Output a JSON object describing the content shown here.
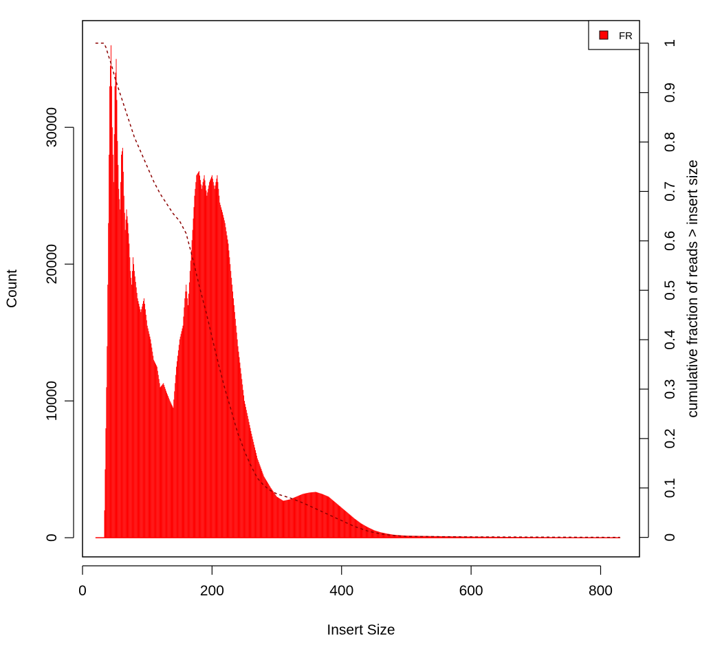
{
  "chart_data": {
    "type": "bar",
    "title": "",
    "xlabel": "Insert Size",
    "ylabel": "Count",
    "y2label": "cumulative fraction of reads > insert size",
    "xlim": [
      0,
      860
    ],
    "ylim": [
      -1400,
      37800
    ],
    "y2lim": [
      -0.03944,
      1.04561
    ],
    "x_ticks": [
      0,
      200,
      400,
      600,
      800
    ],
    "y_ticks": [
      0,
      10000,
      20000,
      30000
    ],
    "y2_ticks": [
      0,
      0.1,
      0.2,
      0.3,
      0.4,
      0.5,
      0.6,
      0.7,
      0.8,
      0.9,
      1
    ],
    "y2_tick_labels": [
      "0",
      "0.1",
      "0.2",
      "0.3",
      "0.4",
      "0.5",
      "0.6",
      "0.7",
      "0.8",
      "0.9",
      "1"
    ],
    "grid": false,
    "legend": {
      "position": "top-right",
      "entries": [
        {
          "label": "FR",
          "color": "#ff0000"
        }
      ]
    },
    "series": [
      {
        "name": "FR",
        "kind": "histogram",
        "color": "#ff0000",
        "x_range": [
          20,
          830
        ],
        "envelope": [
          [
            20,
            0
          ],
          [
            33,
            0
          ],
          [
            34,
            2000
          ],
          [
            36,
            8000
          ],
          [
            38,
            14000
          ],
          [
            40,
            23000
          ],
          [
            42,
            33000
          ],
          [
            44,
            36000
          ],
          [
            46,
            30000
          ],
          [
            48,
            26000
          ],
          [
            50,
            33000
          ],
          [
            52,
            35000
          ],
          [
            54,
            29000
          ],
          [
            56,
            25500
          ],
          [
            58,
            24000
          ],
          [
            60,
            28000
          ],
          [
            62,
            28500
          ],
          [
            64,
            25000
          ],
          [
            66,
            22500
          ],
          [
            68,
            24000
          ],
          [
            70,
            23000
          ],
          [
            72,
            21500
          ],
          [
            74,
            19500
          ],
          [
            76,
            18500
          ],
          [
            78,
            20500
          ],
          [
            80,
            19500
          ],
          [
            85,
            17500
          ],
          [
            90,
            16500
          ],
          [
            95,
            17500
          ],
          [
            100,
            15500
          ],
          [
            105,
            14500
          ],
          [
            110,
            13000
          ],
          [
            115,
            12500
          ],
          [
            120,
            11000
          ],
          [
            125,
            11300
          ],
          [
            130,
            10600
          ],
          [
            135,
            10000
          ],
          [
            140,
            9500
          ],
          [
            145,
            12500
          ],
          [
            150,
            14500
          ],
          [
            155,
            15500
          ],
          [
            158,
            17500
          ],
          [
            160,
            18500
          ],
          [
            163,
            17000
          ],
          [
            166,
            19500
          ],
          [
            170,
            22500
          ],
          [
            173,
            25000
          ],
          [
            176,
            26500
          ],
          [
            180,
            26800
          ],
          [
            184,
            25500
          ],
          [
            188,
            26500
          ],
          [
            192,
            25000
          ],
          [
            196,
            26000
          ],
          [
            200,
            26500
          ],
          [
            204,
            25500
          ],
          [
            208,
            26500
          ],
          [
            212,
            24500
          ],
          [
            216,
            23800
          ],
          [
            220,
            23000
          ],
          [
            225,
            21500
          ],
          [
            230,
            19000
          ],
          [
            235,
            16500
          ],
          [
            240,
            14000
          ],
          [
            245,
            12000
          ],
          [
            250,
            10000
          ],
          [
            260,
            7800
          ],
          [
            270,
            5800
          ],
          [
            280,
            4500
          ],
          [
            290,
            3700
          ],
          [
            300,
            3000
          ],
          [
            310,
            2700
          ],
          [
            320,
            2800
          ],
          [
            330,
            3000
          ],
          [
            340,
            3200
          ],
          [
            350,
            3300
          ],
          [
            360,
            3350
          ],
          [
            370,
            3200
          ],
          [
            380,
            3000
          ],
          [
            390,
            2600
          ],
          [
            400,
            2200
          ],
          [
            410,
            1800
          ],
          [
            420,
            1400
          ],
          [
            430,
            1050
          ],
          [
            440,
            780
          ],
          [
            450,
            550
          ],
          [
            460,
            400
          ],
          [
            470,
            300
          ],
          [
            480,
            220
          ],
          [
            490,
            180
          ],
          [
            500,
            150
          ],
          [
            550,
            110
          ],
          [
            600,
            80
          ],
          [
            650,
            60
          ],
          [
            700,
            45
          ],
          [
            750,
            30
          ],
          [
            800,
            20
          ],
          [
            830,
            10
          ]
        ]
      },
      {
        "name": "cumulative fraction of reads > insert size",
        "kind": "line",
        "style": "dashed",
        "color": "#8b0000",
        "axis": "right",
        "points": [
          [
            20,
            1.0
          ],
          [
            30,
            1.0
          ],
          [
            33,
            1.0
          ],
          [
            36,
            0.992
          ],
          [
            40,
            0.975
          ],
          [
            45,
            0.955
          ],
          [
            50,
            0.93
          ],
          [
            60,
            0.89
          ],
          [
            70,
            0.85
          ],
          [
            80,
            0.81
          ],
          [
            90,
            0.78
          ],
          [
            100,
            0.75
          ],
          [
            110,
            0.72
          ],
          [
            120,
            0.695
          ],
          [
            130,
            0.675
          ],
          [
            140,
            0.655
          ],
          [
            150,
            0.64
          ],
          [
            160,
            0.615
          ],
          [
            170,
            0.565
          ],
          [
            180,
            0.51
          ],
          [
            190,
            0.46
          ],
          [
            200,
            0.405
          ],
          [
            210,
            0.35
          ],
          [
            220,
            0.3
          ],
          [
            230,
            0.255
          ],
          [
            240,
            0.21
          ],
          [
            250,
            0.175
          ],
          [
            260,
            0.145
          ],
          [
            270,
            0.12
          ],
          [
            280,
            0.105
          ],
          [
            290,
            0.095
          ],
          [
            300,
            0.088
          ],
          [
            320,
            0.08
          ],
          [
            340,
            0.07
          ],
          [
            360,
            0.058
          ],
          [
            380,
            0.046
          ],
          [
            400,
            0.034
          ],
          [
            420,
            0.022
          ],
          [
            440,
            0.013
          ],
          [
            460,
            0.007
          ],
          [
            480,
            0.004
          ],
          [
            500,
            0.002
          ],
          [
            600,
            0.001
          ],
          [
            830,
            0
          ]
        ]
      }
    ]
  }
}
